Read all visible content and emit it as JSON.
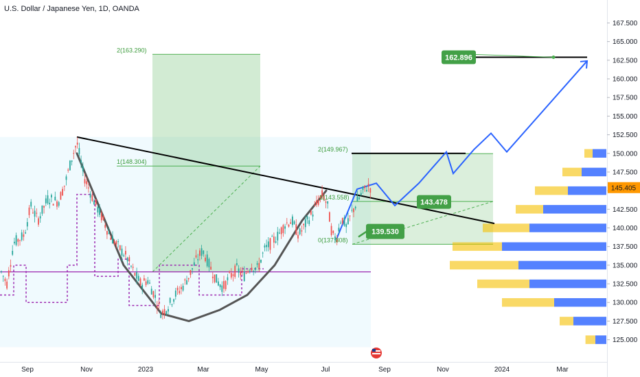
{
  "chart_data": {
    "type": "candlestick",
    "title": "U.S. Dollar / Japanese Yen, 1D, OANDA",
    "x_ticks": [
      "Sep",
      "Nov",
      "2023",
      "Mar",
      "May",
      "Jul",
      "Sep",
      "Nov",
      "2024",
      "Mar"
    ],
    "y_ticks": [
      125.0,
      127.5,
      130.0,
      132.5,
      135.0,
      137.5,
      140.0,
      142.5,
      145.0,
      147.5,
      150.0,
      152.5,
      155.0,
      157.5,
      160.0,
      162.5,
      165.0,
      167.5
    ],
    "ylim": [
      123.4,
      169.2
    ],
    "current_price": 145.405,
    "current_price_label": "145.405",
    "fib_labels": [
      {
        "text": "2(163.290)",
        "value": 163.29
      },
      {
        "text": "1(148.304)",
        "value": 148.304
      },
      {
        "text": "2(149.967)",
        "value": 149.967
      },
      {
        "text": "1(143.558)",
        "value": 143.558
      },
      {
        "text": "0(137.808)",
        "value": 137.808
      }
    ],
    "annotations": [
      {
        "text": "162.896",
        "value": 162.896
      },
      {
        "text": "143.478",
        "value": 143.478
      },
      {
        "text": "139.530",
        "value": 139.53
      }
    ],
    "price_path": [
      [
        0,
        134.5
      ],
      [
        10,
        132.5
      ],
      [
        20,
        138
      ],
      [
        35,
        139
      ],
      [
        45,
        143
      ],
      [
        55,
        141
      ],
      [
        70,
        144
      ],
      [
        85,
        143.5
      ],
      [
        95,
        146
      ],
      [
        105,
        149.5
      ],
      [
        112,
        151.5
      ],
      [
        122,
        147
      ],
      [
        135,
        144
      ],
      [
        148,
        141.5
      ],
      [
        160,
        139
      ],
      [
        172,
        137.5
      ],
      [
        185,
        136
      ],
      [
        195,
        134
      ],
      [
        205,
        132.5
      ],
      [
        215,
        133
      ],
      [
        225,
        131
      ],
      [
        235,
        128.5
      ],
      [
        245,
        129.5
      ],
      [
        255,
        131
      ],
      [
        265,
        132
      ],
      [
        275,
        133.5
      ],
      [
        285,
        135.5
      ],
      [
        295,
        137
      ],
      [
        305,
        135
      ],
      [
        315,
        133
      ],
      [
        325,
        132
      ],
      [
        335,
        133.5
      ],
      [
        345,
        134.5
      ],
      [
        355,
        133.5
      ],
      [
        365,
        135
      ],
      [
        375,
        134.5
      ],
      [
        385,
        137
      ],
      [
        395,
        138
      ],
      [
        405,
        139
      ],
      [
        415,
        140.5
      ],
      [
        425,
        141
      ],
      [
        435,
        139
      ],
      [
        445,
        140.5
      ],
      [
        455,
        142
      ],
      [
        463,
        143.5
      ],
      [
        470,
        144.5
      ],
      [
        477,
        143
      ],
      [
        484,
        139
      ],
      [
        490,
        138.5
      ],
      [
        497,
        141.5
      ],
      [
        505,
        140
      ],
      [
        512,
        142
      ],
      [
        520,
        143.5
      ],
      [
        528,
        144.8
      ],
      [
        535,
        145.6
      ],
      [
        540,
        145.4
      ]
    ],
    "cup_curve": [
      [
        112,
        150
      ],
      [
        180,
        135
      ],
      [
        235,
        128.5
      ],
      [
        275,
        127.5
      ],
      [
        320,
        129
      ],
      [
        360,
        131
      ],
      [
        400,
        135
      ],
      [
        440,
        141
      ],
      [
        475,
        145
      ]
    ],
    "trendline": [
      [
        112,
        152.2
      ],
      [
        720,
        140.6
      ]
    ],
    "projection_path": [
      [
        490,
        138.5
      ],
      [
        520,
        145.2
      ],
      [
        548,
        146
      ],
      [
        575,
        143
      ],
      [
        610,
        146
      ],
      [
        650,
        150.2
      ],
      [
        660,
        147.3
      ],
      [
        690,
        150.5
      ],
      [
        715,
        152.7
      ],
      [
        738,
        150.2
      ],
      [
        855,
        162.4
      ]
    ],
    "target_line": {
      "value": 162.9,
      "x1": 688,
      "x2": 855
    },
    "resistance_line": {
      "value": 150.0,
      "x1": 512,
      "x2": 678
    },
    "support_line": {
      "value": 134.1,
      "x1": 0,
      "x2": 540
    },
    "colors": {
      "up": "#26a69a",
      "down": "#ef5350",
      "projection": "#2962ff",
      "green_box": "#4caf50",
      "label_bg": "#43a047",
      "price_tag": "#ff9800",
      "support": "#9c27b0",
      "cup": "#555555",
      "vp_up": "#2962ff",
      "vp_down": "#f5c000"
    },
    "volume_profile": [
      {
        "price": 125.0,
        "up": 20,
        "down": 18
      },
      {
        "price": 127.5,
        "up": 60,
        "down": 25
      },
      {
        "price": 130.0,
        "up": 95,
        "down": 95
      },
      {
        "price": 132.5,
        "up": 140,
        "down": 95
      },
      {
        "price": 135.0,
        "up": 160,
        "down": 125
      },
      {
        "price": 137.5,
        "up": 190,
        "down": 90
      },
      {
        "price": 140.0,
        "up": 140,
        "down": 85
      },
      {
        "price": 142.5,
        "up": 115,
        "down": 50
      },
      {
        "price": 145.0,
        "up": 70,
        "down": 60
      },
      {
        "price": 147.5,
        "up": 45,
        "down": 35
      },
      {
        "price": 150.0,
        "up": 25,
        "down": 15
      }
    ]
  }
}
